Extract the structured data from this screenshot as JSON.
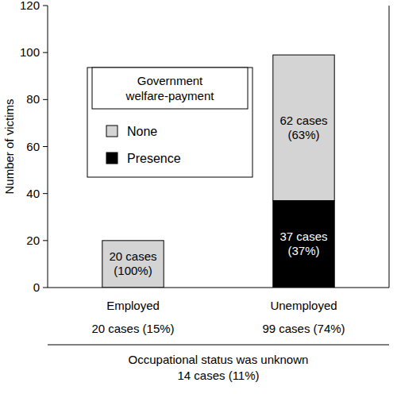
{
  "chart_data": {
    "type": "bar",
    "stacked": true,
    "y_label": "Number of victims",
    "categories": [
      "Employed",
      "Unemployed"
    ],
    "category_notes": [
      "20 cases (15%)",
      "99 cases (74%)"
    ],
    "footnote": [
      "Occupational status was unknown",
      "14 cases (11%)"
    ],
    "legend_title": "Government welfare-payment",
    "legend": "upper left",
    "data_labels": true,
    "series": [
      {
        "name": "Presence",
        "color": "#000000",
        "values": [
          0,
          37
        ],
        "value_labels": [
          null,
          "37 cases (37%)"
        ]
      },
      {
        "name": "None",
        "color": "#d4d4d4",
        "values": [
          20,
          62
        ],
        "value_labels": [
          "20 cases (100%)",
          "62 cases (63%)"
        ]
      }
    ],
    "ylim": [
      0,
      120
    ],
    "yticks": [
      0,
      20,
      40,
      60,
      80,
      100,
      120
    ],
    "grid": false
  }
}
